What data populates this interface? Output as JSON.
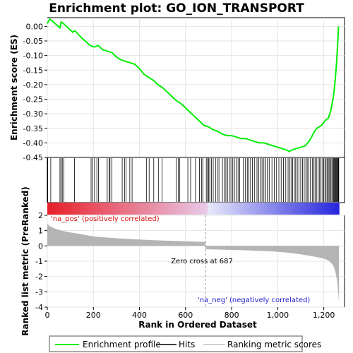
{
  "chart_data": {
    "type": "line",
    "title": "Enrichment plot: GO_ION_TRANSPORT",
    "xlabel": "Rank in Ordered Dataset",
    "es_ylabel": "Enrichment score (ES)",
    "metric_ylabel": "Ranked list metric (PreRanked)",
    "x_range": [
      0,
      1290
    ],
    "x_ticks": [
      0,
      200,
      400,
      600,
      800,
      1000,
      1200
    ],
    "x_tick_labels": [
      "0",
      "200",
      "400",
      "600",
      "800",
      "1,000",
      "1,200"
    ],
    "es_ylim": [
      -0.45,
      0.03
    ],
    "es_ticks": [
      0.0,
      -0.05,
      -0.1,
      -0.15,
      -0.2,
      -0.25,
      -0.3,
      -0.35,
      -0.4,
      -0.45
    ],
    "es_tick_labels": [
      "0.00",
      "-0.05",
      "-0.10",
      "-0.15",
      "-0.20",
      "-0.25",
      "-0.30",
      "-0.35",
      "-0.40",
      "-0.45"
    ],
    "metric_ylim": [
      -4,
      2
    ],
    "metric_ticks": [
      2,
      1,
      0,
      -1,
      -2,
      -3,
      -4
    ],
    "metric_tick_labels": [
      "2",
      "1",
      "0",
      "-1",
      "-2",
      "-3",
      "-4"
    ],
    "series": [
      {
        "name": "Enrichment profile",
        "color": "#00ff00",
        "x": [
          0,
          10,
          20,
          40,
          55,
          60,
          70,
          90,
          110,
          120,
          150,
          185,
          200,
          210,
          220,
          240,
          260,
          280,
          300,
          320,
          340,
          360,
          380,
          400,
          420,
          440,
          460,
          480,
          500,
          520,
          540,
          560,
          580,
          600,
          620,
          640,
          660,
          680,
          700,
          720,
          740,
          760,
          780,
          800,
          820,
          840,
          860,
          880,
          900,
          920,
          940,
          960,
          980,
          1000,
          1020,
          1040,
          1050,
          1060,
          1080,
          1100,
          1120,
          1130,
          1140,
          1150,
          1160,
          1170,
          1180,
          1190,
          1200,
          1210,
          1220,
          1230,
          1240,
          1245,
          1250,
          1255,
          1258,
          1261,
          1264
        ],
        "y": [
          0.01,
          0.025,
          0.02,
          0.005,
          -0.005,
          0.015,
          0.01,
          -0.005,
          -0.02,
          -0.015,
          -0.04,
          -0.065,
          -0.07,
          -0.07,
          -0.065,
          -0.08,
          -0.085,
          -0.09,
          -0.105,
          -0.115,
          -0.12,
          -0.125,
          -0.13,
          -0.145,
          -0.165,
          -0.175,
          -0.185,
          -0.2,
          -0.21,
          -0.225,
          -0.24,
          -0.255,
          -0.265,
          -0.28,
          -0.295,
          -0.31,
          -0.325,
          -0.34,
          -0.345,
          -0.355,
          -0.36,
          -0.37,
          -0.375,
          -0.375,
          -0.38,
          -0.385,
          -0.385,
          -0.39,
          -0.395,
          -0.4,
          -0.4,
          -0.405,
          -0.41,
          -0.415,
          -0.42,
          -0.425,
          -0.43,
          -0.425,
          -0.42,
          -0.415,
          -0.41,
          -0.4,
          -0.39,
          -0.375,
          -0.36,
          -0.35,
          -0.345,
          -0.34,
          -0.33,
          -0.32,
          -0.315,
          -0.29,
          -0.25,
          -0.22,
          -0.18,
          -0.13,
          -0.09,
          -0.05,
          0.0
        ]
      },
      {
        "name": "Hits",
        "color": "#000000",
        "positions": [
          2,
          15,
          55,
          60,
          65,
          72,
          118,
          190,
          198,
          205,
          215,
          222,
          260,
          268,
          272,
          280,
          325,
          335,
          342,
          358,
          368,
          430,
          442,
          462,
          482,
          498,
          560,
          568,
          575,
          610,
          622,
          643,
          660,
          670,
          675,
          690,
          695,
          700,
          705,
          712,
          720,
          730,
          738,
          745,
          760,
          768,
          775,
          782,
          790,
          797,
          805,
          812,
          820,
          828,
          835,
          850,
          860,
          868,
          875,
          882,
          890,
          900,
          910,
          918,
          925,
          932,
          940,
          948,
          955,
          963,
          975,
          985,
          995,
          1005,
          1015,
          1025,
          1035,
          1045,
          1052,
          1058,
          1065,
          1072,
          1078,
          1085,
          1092,
          1100,
          1108,
          1115,
          1122,
          1128,
          1135,
          1142,
          1150,
          1156,
          1162,
          1168,
          1175,
          1182,
          1188,
          1195,
          1200,
          1205,
          1210,
          1215,
          1220,
          1225,
          1230,
          1235,
          1240,
          1243,
          1246,
          1249,
          1252,
          1255,
          1258,
          1261,
          1263,
          1265
        ]
      },
      {
        "name": "Ranking metric scores",
        "color": "#c0c0c0",
        "x": [
          0,
          10,
          30,
          60,
          100,
          150,
          200,
          250,
          300,
          350,
          400,
          450,
          500,
          550,
          600,
          650,
          686,
          687,
          700,
          750,
          800,
          850,
          900,
          950,
          1000,
          1050,
          1100,
          1150,
          1200,
          1220,
          1240,
          1250,
          1258,
          1262,
          1266
        ],
        "y": [
          1.45,
          1.3,
          1.15,
          1.0,
          0.88,
          0.76,
          0.62,
          0.56,
          0.5,
          0.46,
          0.42,
          0.38,
          0.35,
          0.33,
          0.3,
          0.28,
          0.26,
          -0.2,
          -0.22,
          -0.24,
          -0.26,
          -0.28,
          -0.31,
          -0.34,
          -0.38,
          -0.45,
          -0.55,
          -0.67,
          -0.82,
          -0.95,
          -1.25,
          -1.65,
          -2.3,
          -3.0,
          -3.7
        ]
      }
    ],
    "zero_cross": 687,
    "zero_cross_label": "Zero cross at 687",
    "pos_label": "'na_pos' (positively correlated)",
    "neg_label": "'na_neg' (negatively correlated)",
    "legend_position": "bottom",
    "colors": {
      "pos": "#e8202a",
      "neg": "#2a2adc",
      "pos_text": "#dd1010",
      "neg_text": "#2020cc"
    }
  }
}
